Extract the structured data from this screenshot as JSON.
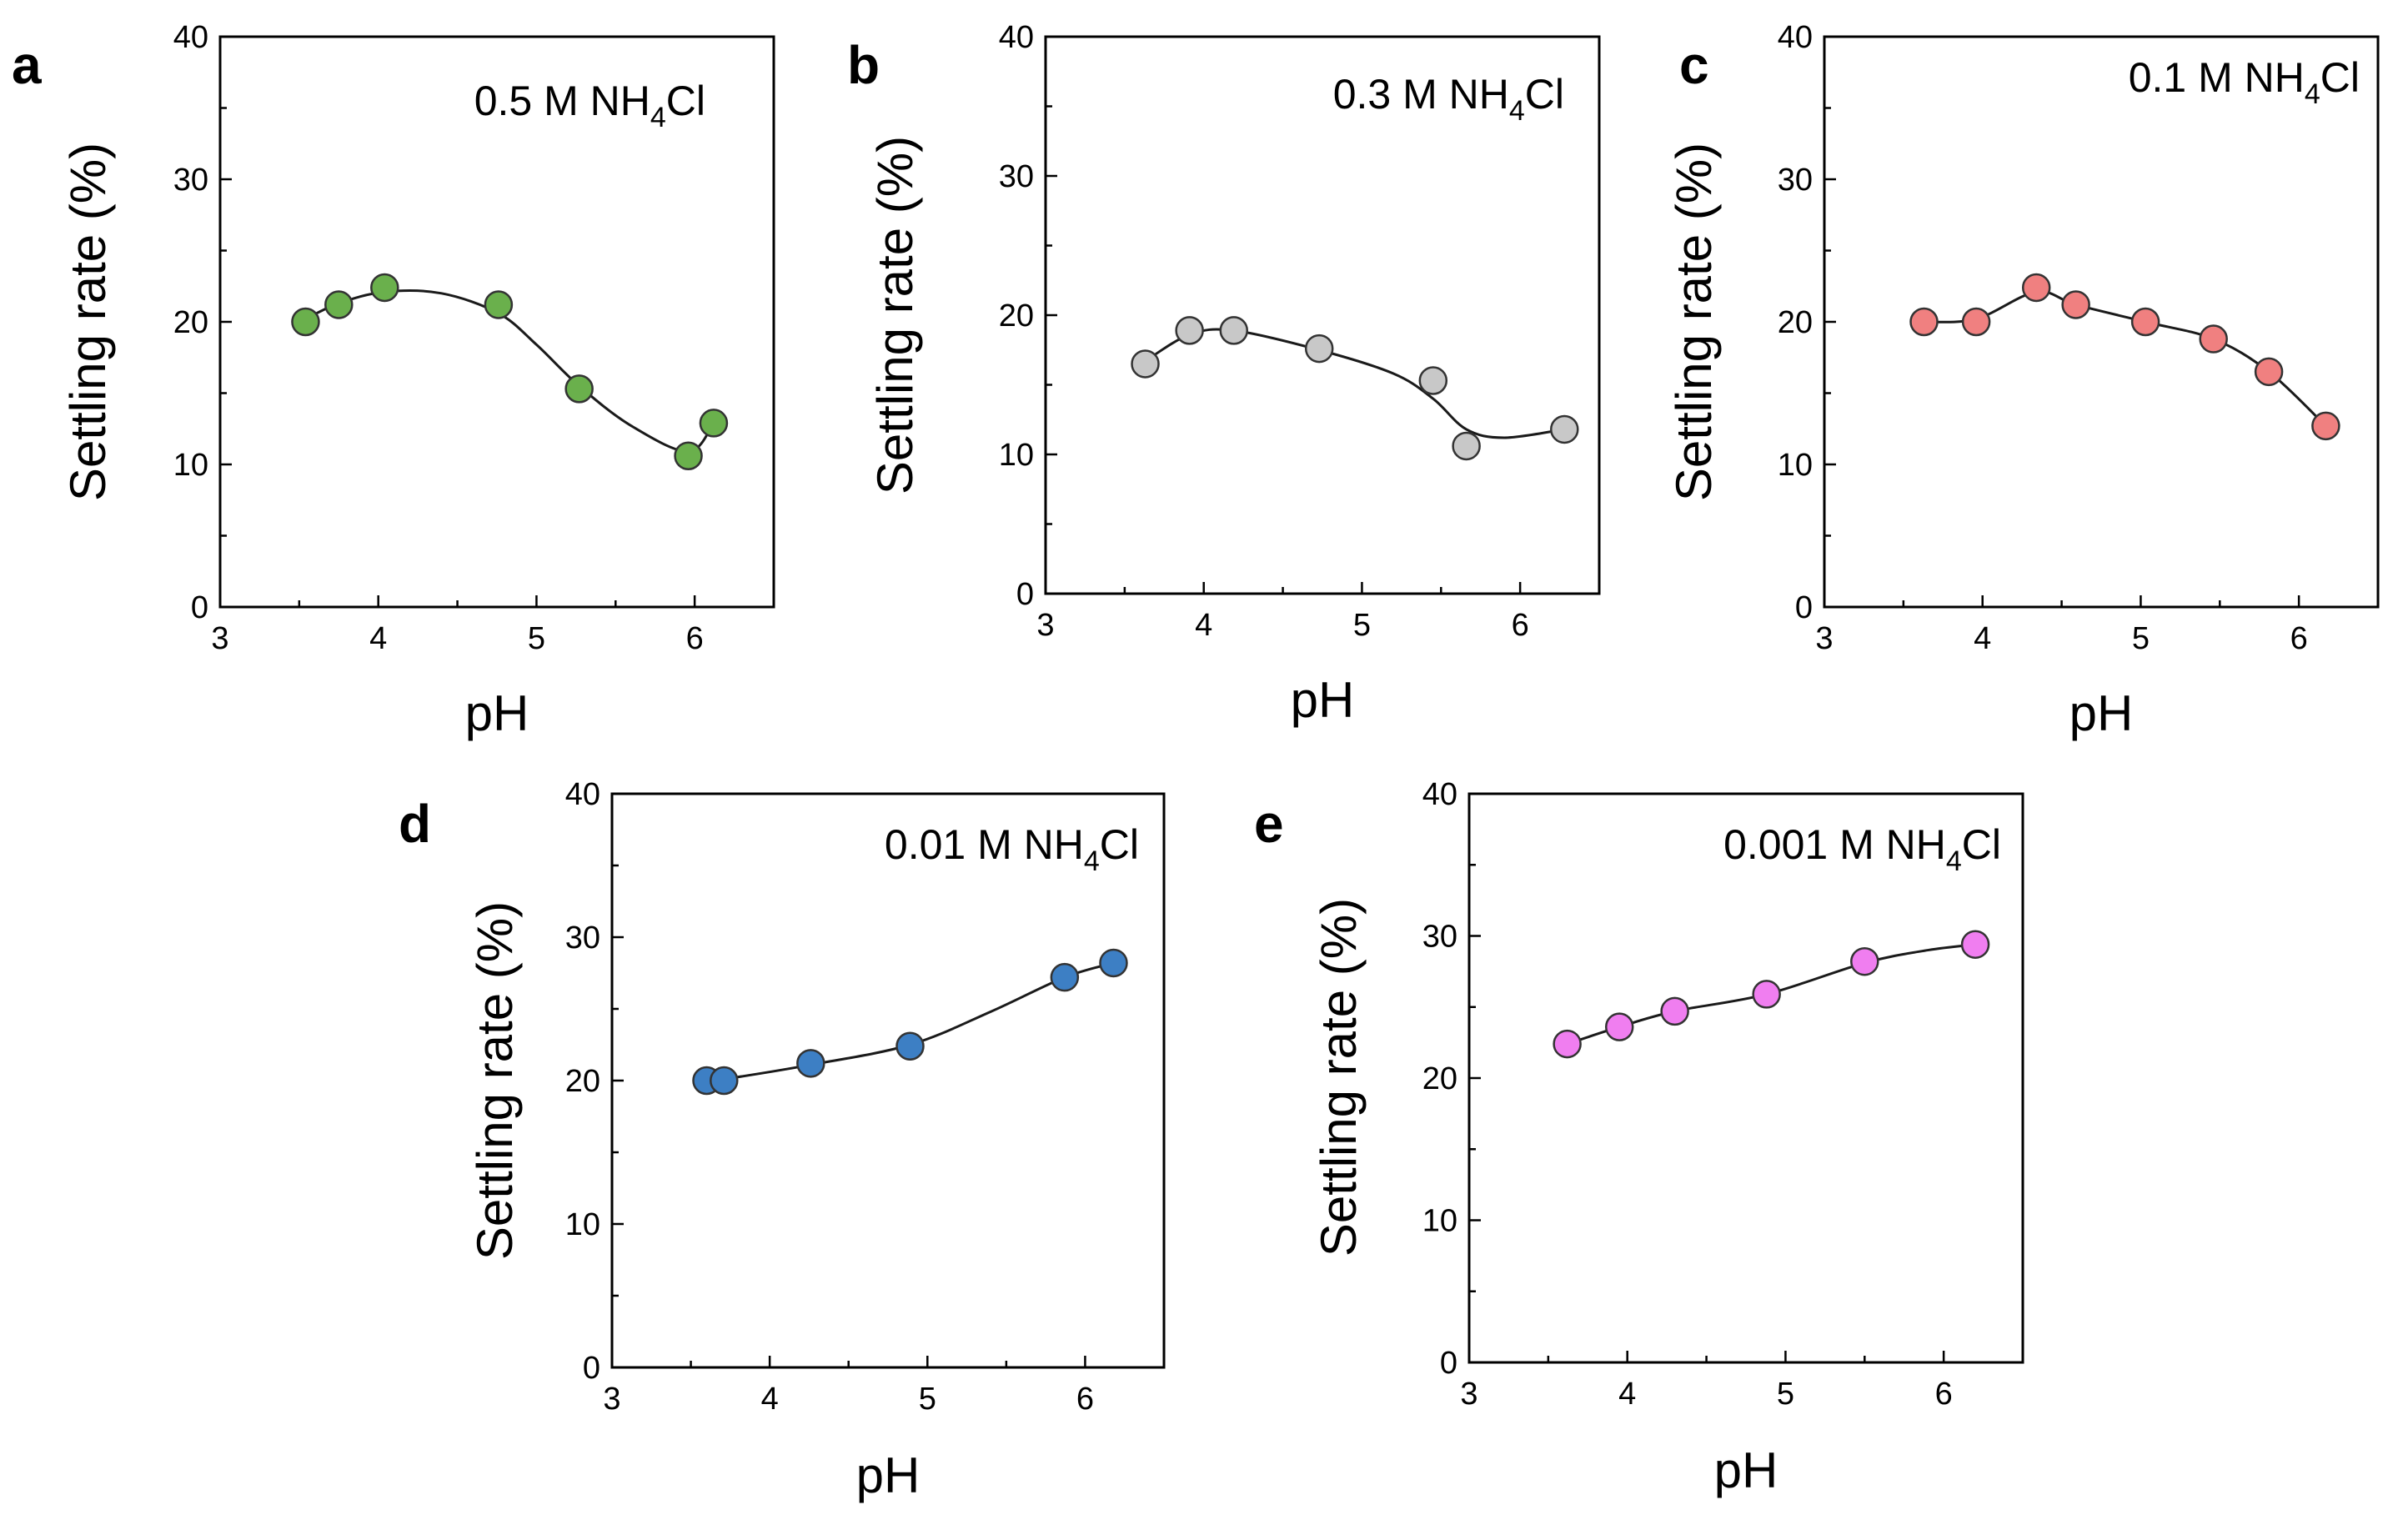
{
  "chart_data": [
    {
      "id": "a",
      "type": "scatter",
      "panel_letter": "a",
      "annotation": {
        "prefix": "0.5 M NH",
        "sub": "4",
        "suffix": "Cl"
      },
      "xlabel": "pH",
      "ylabel": "Settling rate (%)",
      "xlim": [
        3,
        6.5
      ],
      "ylim": [
        0,
        40
      ],
      "xticks": [
        3,
        4,
        5,
        6
      ],
      "yticks": [
        0,
        10,
        20,
        30,
        40
      ],
      "color": "#6ab04c",
      "x": [
        3.54,
        3.75,
        4.04,
        4.76,
        5.27,
        5.96,
        6.12
      ],
      "y": [
        20.0,
        21.2,
        22.4,
        21.2,
        15.3,
        10.6,
        12.9
      ],
      "fit_x": [
        3.54,
        3.75,
        4.04,
        4.4,
        4.76,
        5.0,
        5.27,
        5.6,
        5.96,
        6.12
      ],
      "fit_y": [
        20.2,
        21.3,
        22.1,
        22.0,
        20.6,
        18.4,
        15.5,
        12.7,
        10.9,
        12.9
      ]
    },
    {
      "id": "b",
      "type": "scatter",
      "panel_letter": "b",
      "annotation": {
        "prefix": "0.3 M NH",
        "sub": "4",
        "suffix": "Cl"
      },
      "xlabel": "pH",
      "ylabel": "Settling rate (%)",
      "xlim": [
        3,
        6.5
      ],
      "ylim": [
        0,
        40
      ],
      "xticks": [
        3,
        4,
        5,
        6
      ],
      "yticks": [
        0,
        10,
        20,
        30,
        40
      ],
      "color": "#c8c8c8",
      "x": [
        3.63,
        3.91,
        4.19,
        4.73,
        5.45,
        5.66,
        6.28
      ],
      "y": [
        16.5,
        18.9,
        18.9,
        17.6,
        15.3,
        10.6,
        11.8
      ],
      "fit_x": [
        3.63,
        3.91,
        4.19,
        4.73,
        5.2,
        5.45,
        5.66,
        5.9,
        6.28
      ],
      "fit_y": [
        16.7,
        18.6,
        18.9,
        17.5,
        15.8,
        14.0,
        11.8,
        11.2,
        11.8
      ]
    },
    {
      "id": "c",
      "type": "scatter",
      "panel_letter": "c",
      "annotation": {
        "prefix": "0.1 M NH",
        "sub": "4",
        "suffix": "Cl"
      },
      "xlabel": "pH",
      "ylabel": "Settling rate (%)",
      "xlim": [
        3,
        6.5
      ],
      "ylim": [
        0,
        40
      ],
      "xticks": [
        3,
        4,
        5,
        6
      ],
      "yticks": [
        0,
        10,
        20,
        30,
        40
      ],
      "color": "#f08080",
      "x": [
        3.63,
        3.96,
        4.34,
        4.59,
        5.03,
        5.46,
        5.81,
        6.17
      ],
      "y": [
        20.0,
        20.0,
        22.4,
        21.2,
        20.0,
        18.8,
        16.5,
        12.7
      ],
      "fit_x": [
        3.63,
        3.96,
        4.34,
        4.59,
        5.03,
        5.46,
        5.81,
        6.17
      ],
      "fit_y": [
        20.0,
        20.2,
        22.1,
        21.2,
        20.0,
        18.8,
        16.5,
        12.7
      ]
    },
    {
      "id": "d",
      "type": "scatter",
      "panel_letter": "d",
      "annotation": {
        "prefix": "0.01 M NH",
        "sub": "4",
        "suffix": "Cl"
      },
      "xlabel": "pH",
      "ylabel": "Settling rate (%)",
      "xlim": [
        3,
        6.5
      ],
      "ylim": [
        0,
        40
      ],
      "xticks": [
        3,
        4,
        5,
        6
      ],
      "yticks": [
        0,
        10,
        20,
        30,
        40
      ],
      "color": "#3d7fc4",
      "x": [
        3.6,
        3.71,
        4.26,
        4.89,
        5.87,
        6.18
      ],
      "y": [
        20.0,
        20.0,
        21.2,
        22.4,
        27.2,
        28.2
      ],
      "fit_x": [
        3.6,
        3.71,
        4.26,
        4.89,
        5.4,
        5.87,
        6.18
      ],
      "fit_y": [
        20.0,
        20.1,
        21.1,
        22.5,
        24.8,
        27.2,
        28.2
      ]
    },
    {
      "id": "e",
      "type": "scatter",
      "panel_letter": "e",
      "annotation": {
        "prefix": "0.001 M NH",
        "sub": "4",
        "suffix": "Cl"
      },
      "xlabel": "pH",
      "ylabel": "Settling rate (%)",
      "xlim": [
        3,
        6.5
      ],
      "ylim": [
        0,
        40
      ],
      "xticks": [
        3,
        4,
        5,
        6
      ],
      "yticks": [
        0,
        10,
        20,
        30,
        40
      ],
      "color": "#f07ef0",
      "x": [
        3.62,
        3.95,
        4.3,
        4.88,
        5.5,
        6.2
      ],
      "y": [
        22.4,
        23.6,
        24.7,
        25.9,
        28.2,
        29.4
      ],
      "fit_x": [
        3.62,
        3.95,
        4.3,
        4.88,
        5.5,
        5.9,
        6.2
      ],
      "fit_y": [
        22.4,
        23.6,
        24.7,
        25.9,
        28.1,
        29.0,
        29.4
      ]
    }
  ]
}
